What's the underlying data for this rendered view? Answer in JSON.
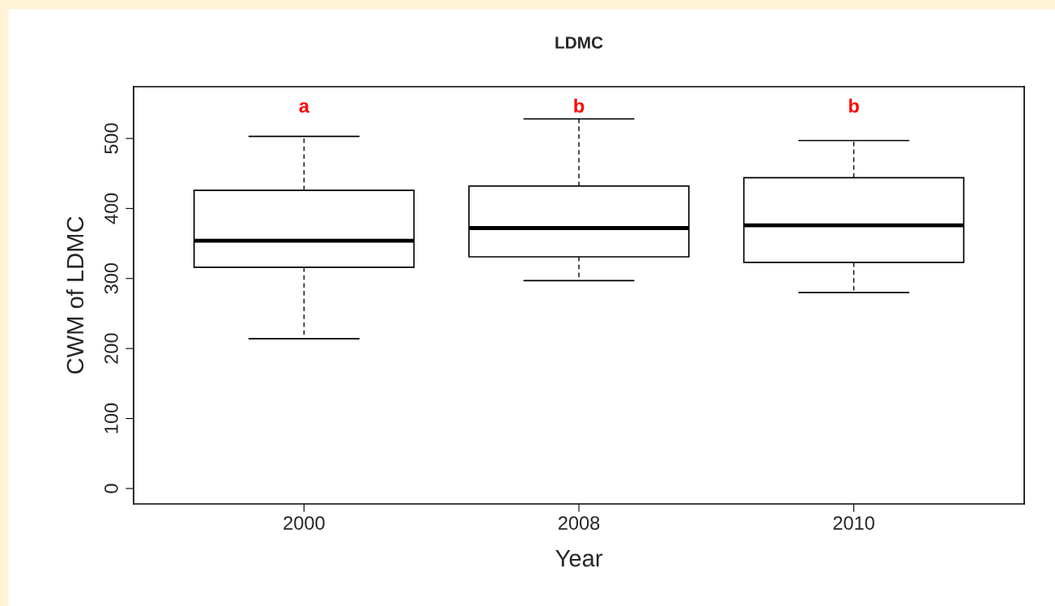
{
  "chart_data": {
    "type": "box",
    "title": "LDMC",
    "xlabel": "Year",
    "ylabel": "CWM of LDMC",
    "categories": [
      "2000",
      "2008",
      "2010"
    ],
    "boxes": [
      {
        "low": 214,
        "q1": 316,
        "median": 354,
        "q3": 426,
        "high": 503
      },
      {
        "low": 297,
        "q1": 331,
        "median": 372,
        "q3": 432,
        "high": 528
      },
      {
        "low": 280,
        "q1": 323,
        "median": 376,
        "q3": 444,
        "high": 497
      }
    ],
    "ylim": [
      -22,
      574
    ],
    "yticks": [
      0,
      100,
      200,
      300,
      400,
      500
    ],
    "grid": false,
    "annotations": [
      "a",
      "b",
      "b"
    ]
  }
}
